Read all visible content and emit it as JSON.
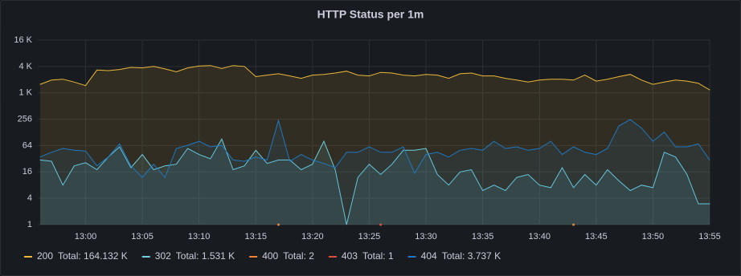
{
  "chart_data": {
    "type": "line",
    "title": "HTTP Status per 1m",
    "log_scale": true,
    "grid": true,
    "x": [
      "12:56",
      "12:57",
      "12:58",
      "12:59",
      "13:00",
      "13:01",
      "13:02",
      "13:03",
      "13:04",
      "13:05",
      "13:06",
      "13:07",
      "13:08",
      "13:09",
      "13:10",
      "13:11",
      "13:12",
      "13:13",
      "13:14",
      "13:15",
      "13:16",
      "13:17",
      "13:18",
      "13:19",
      "13:20",
      "13:21",
      "13:22",
      "13:23",
      "13:24",
      "13:25",
      "13:26",
      "13:27",
      "13:28",
      "13:29",
      "13:30",
      "13:31",
      "13:32",
      "13:33",
      "13:34",
      "13:35",
      "13:36",
      "13:37",
      "13:38",
      "13:39",
      "13:40",
      "13:41",
      "13:42",
      "13:43",
      "13:44",
      "13:45",
      "13:46",
      "13:47",
      "13:48",
      "13:49",
      "13:50",
      "13:51",
      "13:52",
      "13:53",
      "13:54",
      "13:55"
    ],
    "xlim": [
      "12:56",
      "13:55"
    ],
    "xticks": [
      "13:00",
      "13:05",
      "13:10",
      "13:15",
      "13:20",
      "13:25",
      "13:30",
      "13:35",
      "13:40",
      "13:45",
      "13:50",
      "13:55"
    ],
    "ylim": [
      1,
      16384
    ],
    "yticks": [
      1,
      4,
      16,
      64,
      256,
      {
        "value": 1024,
        "label": "1 K"
      },
      {
        "value": 4096,
        "label": "4 K"
      },
      {
        "value": 16384,
        "label": "16 K"
      }
    ],
    "series": [
      {
        "name": "200",
        "total_label": "Total: 164.132 K",
        "color": "#eab839",
        "values": [
          1600,
          2000,
          2100,
          1800,
          1500,
          3400,
          3300,
          3500,
          3900,
          3800,
          4100,
          3600,
          3100,
          3800,
          4200,
          4300,
          3700,
          4300,
          4100,
          2400,
          2600,
          2800,
          2500,
          2200,
          2600,
          2700,
          2900,
          3200,
          2600,
          2500,
          3000,
          2900,
          2600,
          2500,
          2700,
          2600,
          2200,
          2800,
          2900,
          2500,
          2500,
          2200,
          2000,
          1800,
          2000,
          2100,
          2100,
          2000,
          2600,
          1900,
          2100,
          2400,
          2700,
          2000,
          1600,
          1800,
          2000,
          1900,
          1700,
          1200
        ]
      },
      {
        "name": "302",
        "total_label": "Total: 1.531 K",
        "color": "#6ed0e0",
        "values": [
          30,
          28,
          8,
          22,
          26,
          18,
          35,
          60,
          20,
          40,
          18,
          22,
          24,
          55,
          40,
          32,
          90,
          18,
          22,
          50,
          25,
          30,
          30,
          18,
          24,
          80,
          18,
          1,
          12,
          24,
          14,
          24,
          50,
          50,
          55,
          14,
          8,
          16,
          18,
          6,
          8,
          6,
          12,
          14,
          8,
          7,
          20,
          7,
          14,
          8,
          18,
          10,
          6,
          8,
          7,
          45,
          35,
          14,
          3,
          3
        ]
      },
      {
        "name": "400",
        "total_label": "Total: 2",
        "color": "#ef843c",
        "values": [
          null,
          null,
          null,
          null,
          null,
          null,
          null,
          null,
          null,
          null,
          null,
          null,
          null,
          null,
          null,
          null,
          null,
          null,
          null,
          null,
          null,
          1,
          null,
          null,
          null,
          null,
          null,
          null,
          null,
          null,
          null,
          null,
          null,
          null,
          null,
          null,
          null,
          null,
          null,
          null,
          null,
          null,
          null,
          null,
          null,
          null,
          null,
          1,
          null,
          null,
          null,
          null,
          null,
          null,
          null,
          null,
          null,
          null,
          null,
          null
        ]
      },
      {
        "name": "403",
        "total_label": "Total: 1",
        "color": "#e24d42",
        "values": [
          null,
          null,
          null,
          null,
          null,
          null,
          null,
          null,
          null,
          null,
          null,
          null,
          null,
          null,
          null,
          null,
          null,
          null,
          null,
          null,
          null,
          null,
          null,
          null,
          null,
          null,
          null,
          null,
          null,
          null,
          1,
          null,
          null,
          null,
          null,
          null,
          null,
          null,
          null,
          null,
          null,
          null,
          null,
          null,
          null,
          null,
          null,
          null,
          null,
          null,
          null,
          null,
          null,
          null,
          null,
          null,
          null,
          null,
          null,
          null
        ]
      },
      {
        "name": "404",
        "total_label": "Total: 3.737 K",
        "color": "#1f78c1",
        "values": [
          35,
          45,
          55,
          50,
          48,
          22,
          35,
          70,
          22,
          12,
          24,
          12,
          55,
          65,
          80,
          60,
          65,
          30,
          28,
          35,
          30,
          240,
          28,
          40,
          30,
          25,
          20,
          45,
          45,
          60,
          45,
          45,
          60,
          15,
          40,
          45,
          35,
          50,
          55,
          50,
          80,
          55,
          60,
          50,
          55,
          80,
          40,
          60,
          45,
          40,
          55,
          180,
          250,
          160,
          80,
          130,
          60,
          60,
          70,
          30
        ]
      }
    ]
  }
}
